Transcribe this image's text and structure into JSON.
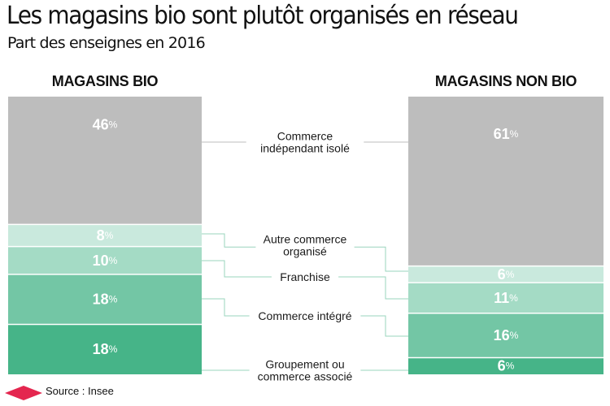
{
  "title": "Les magasins bio sont plutôt organisés en réseau",
  "subtitle": "Part des enseignes en 2016",
  "source": "Source : Insee",
  "colors": {
    "segments": [
      "#bdbdbd",
      "#c9e9dd",
      "#a4dbc5",
      "#73c6a5",
      "#46b488"
    ],
    "connector": "#9ad4bd",
    "connector_top": "#bdbdbd",
    "source_logo": "#e4264f"
  },
  "chart_data": {
    "type": "bar",
    "stacked": true,
    "unit": "%",
    "categories": [
      "MAGASINS BIO",
      "MAGASINS NON BIO"
    ],
    "series": [
      {
        "name": "Commerce indépendant isolé",
        "values": [
          46,
          61
        ]
      },
      {
        "name": "Autre commerce organisé",
        "values": [
          8,
          6
        ]
      },
      {
        "name": "Franchise",
        "values": [
          10,
          11
        ]
      },
      {
        "name": "Commerce intégré",
        "values": [
          18,
          16
        ]
      },
      {
        "name": "Groupement ou commerce associé",
        "values": [
          18,
          6
        ]
      }
    ],
    "labels": [
      [
        "46%",
        "61%"
      ],
      [
        "8%",
        "6%"
      ],
      [
        "10%",
        "11%"
      ],
      [
        "18%",
        "16%"
      ],
      [
        "18%",
        "6%"
      ]
    ],
    "legend": "center, between bars"
  }
}
